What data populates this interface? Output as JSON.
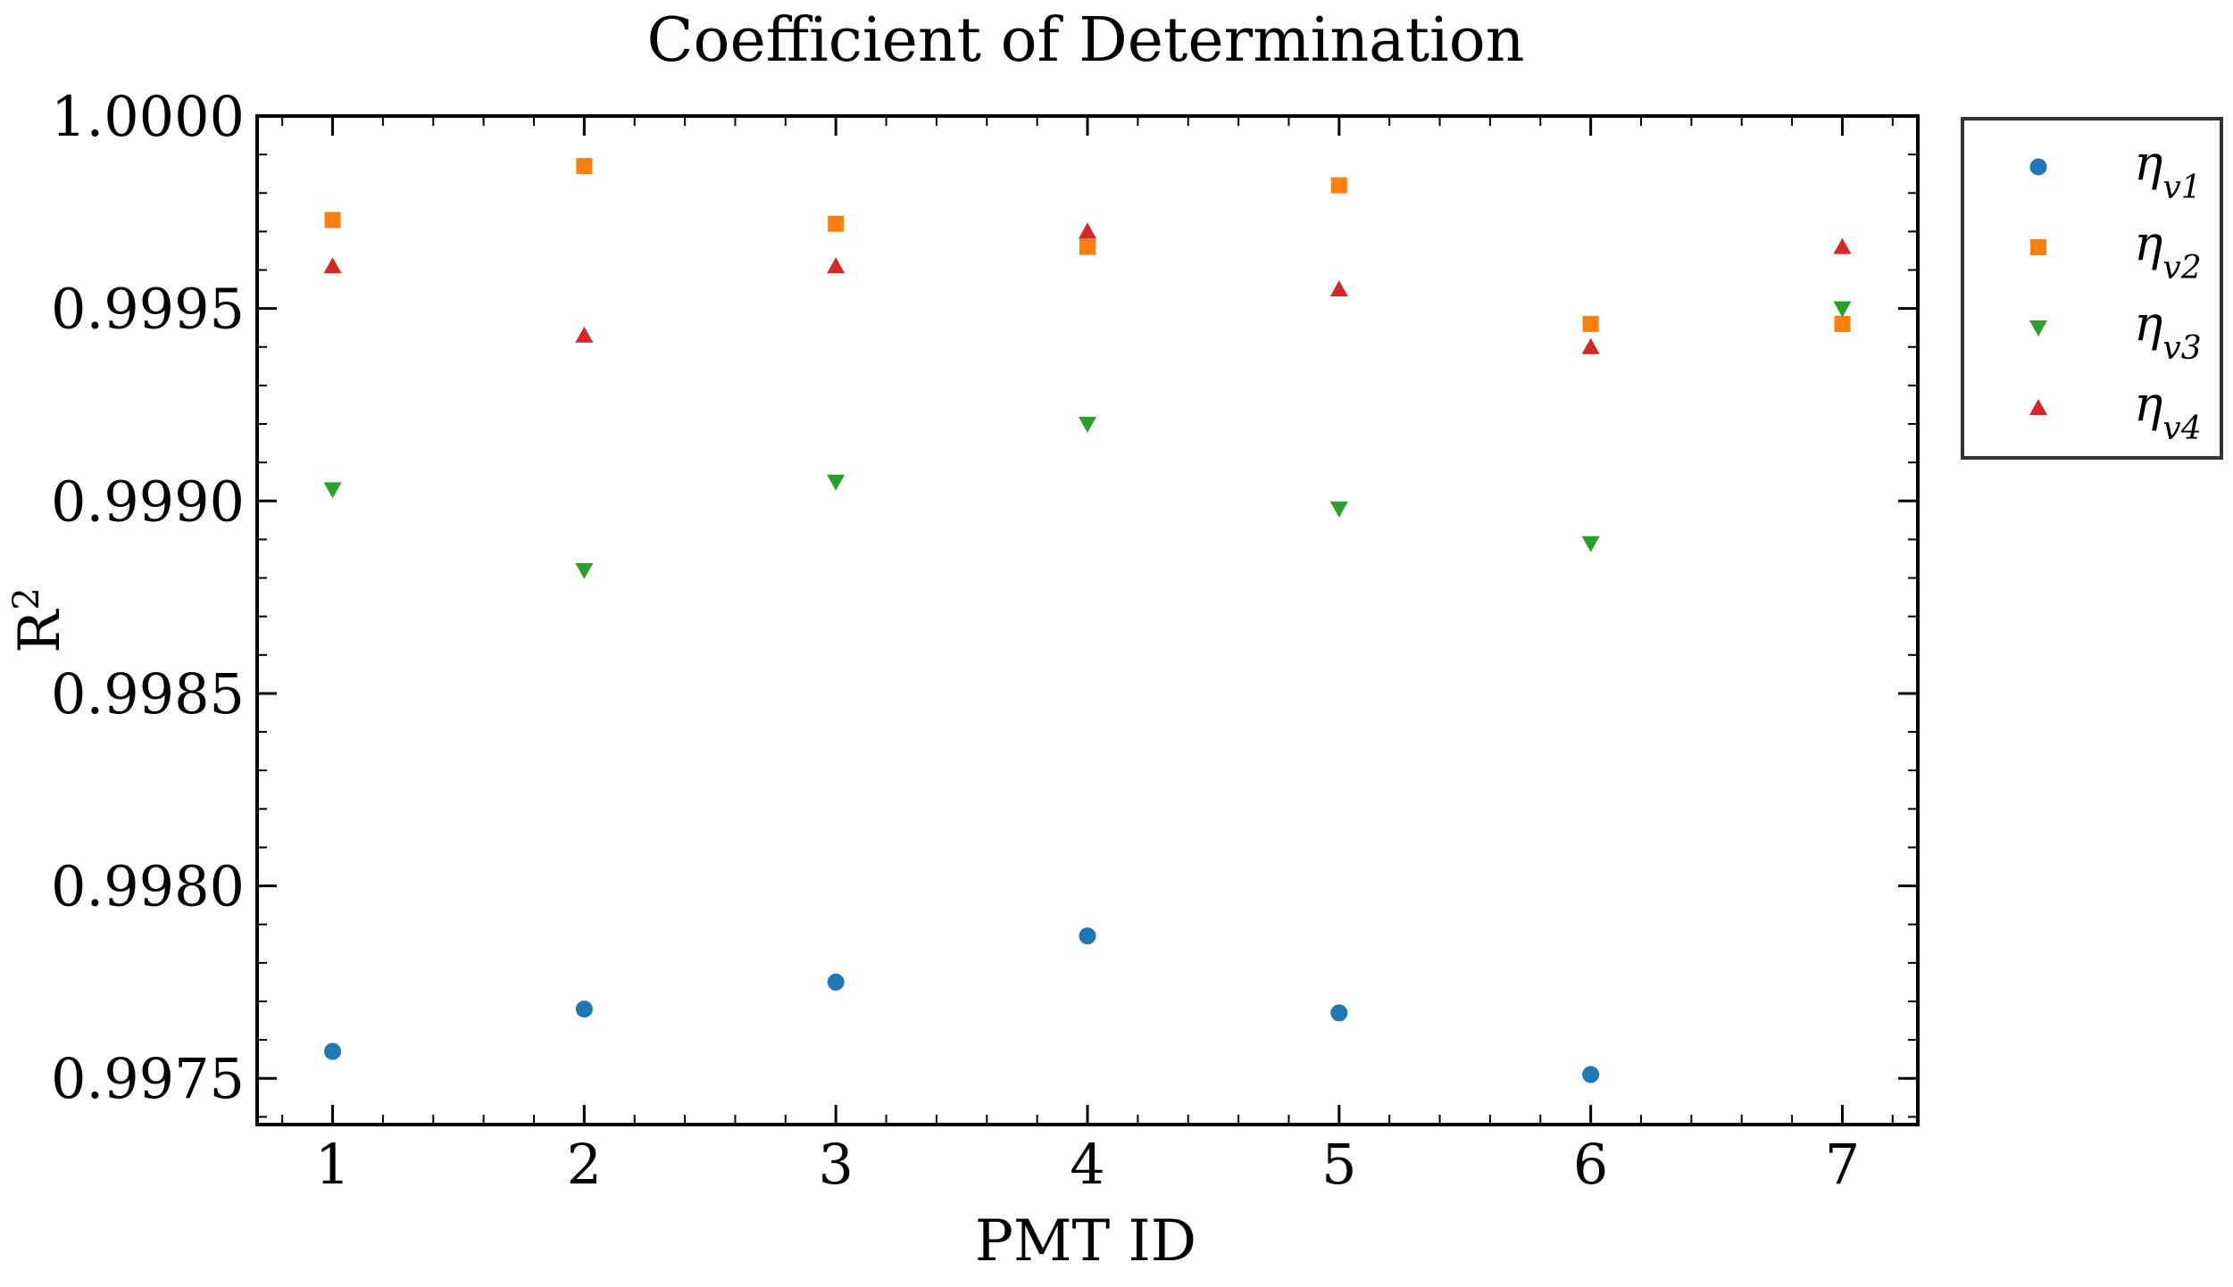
{
  "chart_data": {
    "type": "scatter",
    "title": "Coefficient of Determination",
    "xlabel": "PMT ID",
    "ylabel": "R",
    "ylabel_sup": "2",
    "xlim": [
      0.7,
      7.3
    ],
    "ylim": [
      0.99738,
      1.0
    ],
    "xticks": [
      1,
      2,
      3,
      4,
      5,
      6,
      7
    ],
    "xtick_labels": [
      "1",
      "2",
      "3",
      "4",
      "5",
      "6",
      "7"
    ],
    "yticks": [
      0.9975,
      0.998,
      0.9985,
      0.999,
      0.9995,
      1.0
    ],
    "ytick_labels": [
      "0.9975",
      "0.9980",
      "0.9985",
      "0.9990",
      "0.9995",
      "1.0000"
    ],
    "legend_position": "outside-right-top",
    "x": [
      1,
      2,
      3,
      4,
      5,
      6,
      7
    ],
    "series": [
      {
        "name": "η",
        "name_sub": "v1",
        "marker": "circle",
        "color": "#1f77b4",
        "values": [
          0.99757,
          0.99768,
          0.99775,
          0.99787,
          0.99767,
          0.99751,
          null
        ]
      },
      {
        "name": "η",
        "name_sub": "v2",
        "marker": "square",
        "color": "#ff7f0e",
        "values": [
          0.99973,
          0.99987,
          0.99972,
          0.99966,
          0.99982,
          0.99946,
          0.99946
        ]
      },
      {
        "name": "η",
        "name_sub": "v3",
        "marker": "triangle-down",
        "color": "#2ca02c",
        "values": [
          0.99903,
          0.99882,
          0.99905,
          0.9992,
          0.99898,
          0.99889,
          0.9995
        ]
      },
      {
        "name": "η",
        "name_sub": "v4",
        "marker": "triangle-up",
        "color": "#d62728",
        "values": [
          0.99961,
          0.99943,
          0.99961,
          0.9997,
          0.99955,
          0.9994,
          0.99966
        ]
      }
    ]
  }
}
